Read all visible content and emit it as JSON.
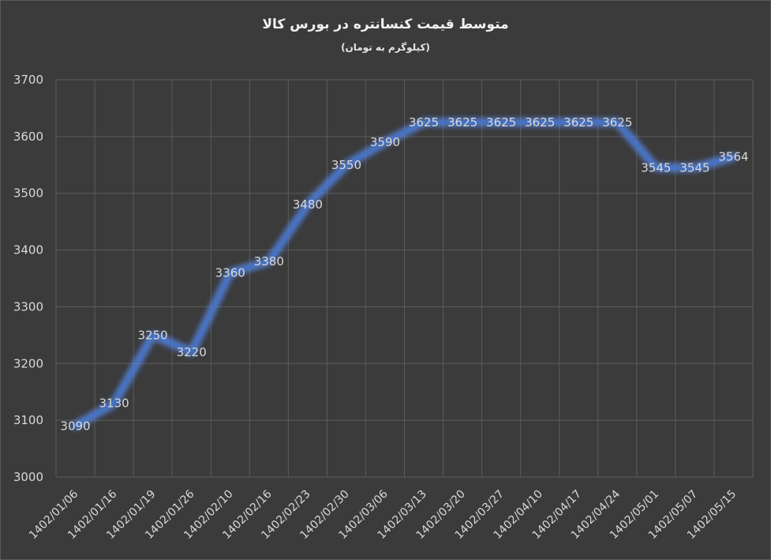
{
  "chart_data": {
    "type": "line",
    "title": "متوسط قیمت کنسانتره در بورس کالا",
    "subtitle": "(کیلوگرم به تومان)",
    "xlabel": "",
    "ylabel": "",
    "categories": [
      "1402/01/06",
      "1402/01/16",
      "1402/01/19",
      "1402/01/26",
      "1402/02/10",
      "1402/02/16",
      "1402/02/23",
      "1402/02/30",
      "1402/03/06",
      "1402/03/13",
      "1402/03/20",
      "1402/03/27",
      "1402/04/10",
      "1402/04/17",
      "1402/04/24",
      "1402/05/01",
      "1402/05/07",
      "1402/05/15"
    ],
    "values": [
      3090,
      3130,
      3250,
      3220,
      3360,
      3380,
      3480,
      3550,
      3590,
      3625,
      3625,
      3625,
      3625,
      3625,
      3625,
      3545,
      3545,
      3564
    ],
    "ylim": [
      3000,
      3700
    ],
    "yticks": [
      3000,
      3100,
      3200,
      3300,
      3400,
      3500,
      3600,
      3700
    ],
    "grid": true,
    "data_labels": true,
    "line_color": "#4472c4",
    "glow_color": "#5b8ff9",
    "background_color": "#3b3b3b"
  }
}
